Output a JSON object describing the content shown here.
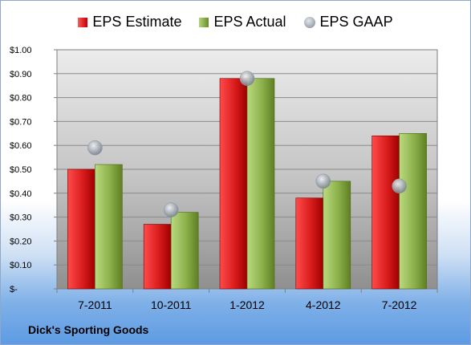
{
  "chart_data": {
    "type": "bar",
    "categories": [
      "7-2011",
      "10-2011",
      "1-2012",
      "4-2012",
      "7-2012"
    ],
    "series": [
      {
        "name": "EPS Estimate",
        "kind": "bar",
        "color": "#d42020",
        "values": [
          0.5,
          0.27,
          0.88,
          0.38,
          0.64
        ]
      },
      {
        "name": "EPS Actual",
        "kind": "bar",
        "color": "#8cb04a",
        "values": [
          0.52,
          0.32,
          0.88,
          0.45,
          0.65
        ]
      },
      {
        "name": "EPS GAAP",
        "kind": "scatter",
        "color": "#a0a8b2",
        "values": [
          0.59,
          0.33,
          0.88,
          0.45,
          0.43
        ]
      }
    ],
    "ylim": [
      0,
      1.0
    ],
    "yticks": [
      0,
      0.1,
      0.2,
      0.3,
      0.4,
      0.5,
      0.6,
      0.7,
      0.8,
      0.9,
      1.0
    ],
    "ytick_labels": [
      "$-",
      "$0.10",
      "$0.20",
      "$0.30",
      "$0.40",
      "$0.50",
      "$0.60",
      "$0.70",
      "$0.80",
      "$0.90",
      "$1.00"
    ],
    "grid": true,
    "legend_position": "top",
    "title": "",
    "xlabel": "",
    "ylabel": ""
  },
  "footer": {
    "title": "Dick's Sporting Goods"
  }
}
